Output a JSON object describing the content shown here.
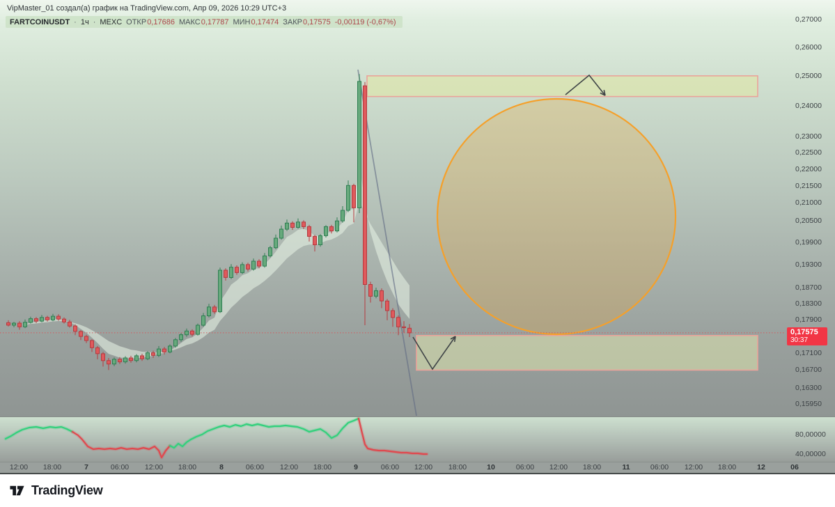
{
  "attribution": "VipMaster_01 создал(а) график на TradingView.com, Апр 09, 2026 10:29 UTC+3",
  "legend": {
    "symbol": "FARTCOINUSDT",
    "separator": "·",
    "interval": "1ч",
    "exchange": "MEXC",
    "fields": [
      {
        "label": "ОТКР",
        "value": "0,17686"
      },
      {
        "label": "МАКС",
        "value": "0,17787"
      },
      {
        "label": "МИН",
        "value": "0,17474"
      },
      {
        "label": "ЗАКР",
        "value": "0,17575"
      }
    ],
    "change": "-0,00119 (-0,67%)"
  },
  "price_label": {
    "price": "0,17575",
    "countdown": "30:37"
  },
  "price_axis_labels": [
    "0,27000",
    "0,26000",
    "0,25000",
    "0,24000",
    "0,23000",
    "0,22500",
    "0,22000",
    "0,21500",
    "0,21000",
    "0,20500",
    "0,19900",
    "0,19300",
    "0,18700",
    "0,18300",
    "0,17900",
    "0,17100",
    "0,16700",
    "0,16300",
    "0,15950"
  ],
  "indicator_axis_labels": [
    {
      "text": "80,00000",
      "value": 80
    },
    {
      "text": "40,00000",
      "value": 40
    }
  ],
  "time_axis_labels": [
    "12:00",
    "18:00",
    "7",
    "06:00",
    "12:00",
    "18:00",
    "8",
    "06:00",
    "12:00",
    "18:00",
    "9",
    "06:00",
    "12:00",
    "18:00",
    "10",
    "06:00",
    "12:00",
    "18:00",
    "11",
    "06:00",
    "12:00",
    "18:00",
    "12",
    "06"
  ],
  "footer": {
    "brand": "TradingView"
  },
  "colors": {
    "up_fill": "#67a97c",
    "up_border": "#2e7e52",
    "down_fill": "#df5a5c",
    "down_border": "#b63a3f",
    "accent_red": "#f23645",
    "zone_fill": "#dde4ad",
    "zone_border": "#eba29a",
    "ellipse_stroke": "#f5a02a",
    "osc_green": "#32d07c",
    "osc_red": "#e0484e",
    "trend_line": "rgba(96,106,131,0.6)",
    "ribbon": "rgba(229,241,227,0.58)"
  },
  "chart_data": {
    "type": "candlestick",
    "symbol": "FARTCOINUSDT",
    "exchange": "MEXC",
    "interval": "1h",
    "price_scale_type": "log",
    "visible_time_range": "Апр 6 ~10:00 — Апр 9 10:00 (2026), axis continues to Апр 12 06:00",
    "ohlc_note": "values estimated from pixels; columns [open, high, low, close]",
    "candles": [
      [
        0.1782,
        0.1788,
        0.1773,
        0.1776
      ],
      [
        0.1776,
        0.1784,
        0.1771,
        0.1781
      ],
      [
        0.1781,
        0.1786,
        0.1765,
        0.1772
      ],
      [
        0.1772,
        0.179,
        0.1769,
        0.1783
      ],
      [
        0.1783,
        0.1797,
        0.178,
        0.1792
      ],
      [
        0.1792,
        0.1796,
        0.1781,
        0.1786
      ],
      [
        0.1786,
        0.1801,
        0.1783,
        0.1795
      ],
      [
        0.1795,
        0.1799,
        0.1785,
        0.1789
      ],
      [
        0.1789,
        0.1804,
        0.1786,
        0.1798
      ],
      [
        0.1798,
        0.1803,
        0.1787,
        0.1791
      ],
      [
        0.1791,
        0.1795,
        0.178,
        0.1784
      ],
      [
        0.1784,
        0.1789,
        0.177,
        0.1774
      ],
      [
        0.1774,
        0.1778,
        0.1752,
        0.1761
      ],
      [
        0.1761,
        0.1764,
        0.174,
        0.1749
      ],
      [
        0.1749,
        0.1753,
        0.1733,
        0.1739
      ],
      [
        0.1739,
        0.1742,
        0.1712,
        0.1722
      ],
      [
        0.1722,
        0.1726,
        0.1695,
        0.1708
      ],
      [
        0.1708,
        0.1712,
        0.1678,
        0.1692
      ],
      [
        0.1692,
        0.1698,
        0.167,
        0.1684
      ],
      [
        0.1684,
        0.1699,
        0.1679,
        0.1695
      ],
      [
        0.1695,
        0.17,
        0.1684,
        0.1689
      ],
      [
        0.1689,
        0.1702,
        0.1685,
        0.1698
      ],
      [
        0.1698,
        0.1703,
        0.1687,
        0.1692
      ],
      [
        0.1692,
        0.1707,
        0.1688,
        0.1703
      ],
      [
        0.1703,
        0.1708,
        0.1691,
        0.1696
      ],
      [
        0.1696,
        0.1714,
        0.1693,
        0.171
      ],
      [
        0.171,
        0.1715,
        0.1698,
        0.1704
      ],
      [
        0.1704,
        0.1726,
        0.17,
        0.1719
      ],
      [
        0.1719,
        0.1724,
        0.1706,
        0.1712
      ],
      [
        0.1712,
        0.173,
        0.1709,
        0.1726
      ],
      [
        0.1726,
        0.1745,
        0.1722,
        0.1741
      ],
      [
        0.1741,
        0.1757,
        0.1736,
        0.1753
      ],
      [
        0.1753,
        0.1768,
        0.1748,
        0.1762
      ],
      [
        0.1762,
        0.1766,
        0.1749,
        0.1754
      ],
      [
        0.1754,
        0.178,
        0.1751,
        0.1776
      ],
      [
        0.1776,
        0.1806,
        0.1772,
        0.1799
      ],
      [
        0.1799,
        0.1829,
        0.1795,
        0.1821
      ],
      [
        0.1821,
        0.1826,
        0.1804,
        0.1809
      ],
      [
        0.1809,
        0.1922,
        0.1806,
        0.1915
      ],
      [
        0.1915,
        0.192,
        0.1888,
        0.1896
      ],
      [
        0.1896,
        0.1931,
        0.1892,
        0.1923
      ],
      [
        0.1923,
        0.1928,
        0.1903,
        0.1909
      ],
      [
        0.1909,
        0.1936,
        0.1905,
        0.193
      ],
      [
        0.193,
        0.1935,
        0.1912,
        0.1918
      ],
      [
        0.1918,
        0.1946,
        0.1914,
        0.1939
      ],
      [
        0.1939,
        0.1944,
        0.192,
        0.1926
      ],
      [
        0.1926,
        0.1961,
        0.1922,
        0.1953
      ],
      [
        0.1953,
        0.198,
        0.1949,
        0.1975
      ],
      [
        0.1975,
        0.2011,
        0.1971,
        0.2001
      ],
      [
        0.2001,
        0.2036,
        0.1997,
        0.2026
      ],
      [
        0.2026,
        0.2053,
        0.2021,
        0.2043
      ],
      [
        0.2043,
        0.2048,
        0.2024,
        0.2031
      ],
      [
        0.2031,
        0.2056,
        0.2027,
        0.2046
      ],
      [
        0.2046,
        0.2051,
        0.2026,
        0.2033
      ],
      [
        0.2033,
        0.2038,
        0.1992,
        0.2006
      ],
      [
        0.2006,
        0.201,
        0.1965,
        0.1983
      ],
      [
        0.1983,
        0.2012,
        0.1978,
        0.2008
      ],
      [
        0.2008,
        0.2037,
        0.2003,
        0.2033
      ],
      [
        0.2033,
        0.2038,
        0.2014,
        0.2021
      ],
      [
        0.2021,
        0.2059,
        0.2017,
        0.2049
      ],
      [
        0.2049,
        0.2091,
        0.2044,
        0.2079
      ],
      [
        0.2079,
        0.2166,
        0.2074,
        0.2151
      ],
      [
        0.2151,
        0.2156,
        0.2045,
        0.2086
      ],
      [
        0.2086,
        0.2506,
        0.2071,
        0.2481
      ],
      [
        0.2466,
        0.2479,
        0.1776,
        0.1878
      ],
      [
        0.1878,
        0.1885,
        0.1832,
        0.1848
      ],
      [
        0.1848,
        0.187,
        0.1843,
        0.1862
      ],
      [
        0.1862,
        0.1868,
        0.1818,
        0.1836
      ],
      [
        0.1836,
        0.1841,
        0.1788,
        0.1812
      ],
      [
        0.1812,
        0.1818,
        0.1772,
        0.1795
      ],
      [
        0.1795,
        0.18,
        0.1752,
        0.1772
      ],
      [
        0.1772,
        0.1786,
        0.1758,
        0.177
      ],
      [
        0.17686,
        0.17787,
        0.17474,
        0.17575
      ]
    ],
    "current_candle": {
      "open": 0.17686,
      "high": 0.17787,
      "low": 0.17474,
      "close": 0.17575,
      "change": -0.00119,
      "change_pct": -0.67,
      "countdown": "30:37"
    },
    "annotations": {
      "supply_zone": {
        "price_from": 0.243,
        "price_to": 0.25
      },
      "demand_zone": {
        "price_from": 0.167,
        "price_to": 0.1751
      },
      "highlight_ellipse": {
        "price_center": 0.206,
        "price_top": 0.247,
        "price_bottom": 0.172
      },
      "trend_line": {
        "from_price": 0.25,
        "to_price": 0.162,
        "shape": "steep descending line from blow-off top"
      },
      "zigzag_arrows": [
        "pullback-into-supply-then-down",
        "dip-into-demand-then-up"
      ]
    },
    "indicator": {
      "pane_scale": [
        40,
        80
      ],
      "points": [
        [
          8,
          71.4
        ],
        [
          16,
          77.1
        ],
        [
          24,
          84.3
        ],
        [
          32,
          90
        ],
        [
          42,
          94.3
        ],
        [
          52,
          95.7
        ],
        [
          62,
          92.9
        ],
        [
          72,
          95.7
        ],
        [
          80,
          94.3
        ],
        [
          88,
          95.7
        ],
        [
          96,
          91.4
        ],
        [
          104,
          85.7
        ],
        [
          112,
          78.6
        ],
        [
          118,
          70
        ],
        [
          126,
          55.7
        ],
        [
          134,
          50
        ],
        [
          142,
          51.4
        ],
        [
          150,
          50
        ],
        [
          158,
          51.4
        ],
        [
          166,
          50
        ],
        [
          174,
          52.9
        ],
        [
          182,
          50
        ],
        [
          190,
          51.4
        ],
        [
          198,
          50
        ],
        [
          206,
          52.9
        ],
        [
          214,
          50
        ],
        [
          222,
          55.7
        ],
        [
          228,
          47.1
        ],
        [
          232,
          32.9
        ],
        [
          238,
          47.1
        ],
        [
          244,
          57.1
        ],
        [
          250,
          52.9
        ],
        [
          256,
          61.4
        ],
        [
          262,
          55.7
        ],
        [
          268,
          64.3
        ],
        [
          274,
          70
        ],
        [
          282,
          75.7
        ],
        [
          290,
          80
        ],
        [
          298,
          87.1
        ],
        [
          306,
          91.4
        ],
        [
          314,
          95.7
        ],
        [
          322,
          98.6
        ],
        [
          330,
          95.7
        ],
        [
          338,
          100
        ],
        [
          346,
          97.1
        ],
        [
          354,
          101.4
        ],
        [
          362,
          98.6
        ],
        [
          370,
          101.4
        ],
        [
          378,
          98.6
        ],
        [
          386,
          95.7
        ],
        [
          394,
          97.1
        ],
        [
          402,
          97.1
        ],
        [
          410,
          98.6
        ],
        [
          418,
          97.1
        ],
        [
          427,
          95.7
        ],
        [
          436,
          91.4
        ],
        [
          444,
          85.7
        ],
        [
          452,
          88.6
        ],
        [
          460,
          91.4
        ],
        [
          468,
          84.3
        ],
        [
          476,
          72.9
        ],
        [
          484,
          78.6
        ],
        [
          492,
          92.9
        ],
        [
          500,
          104.3
        ],
        [
          508,
          108.6
        ],
        [
          515,
          112.9
        ],
        [
          520,
          82.9
        ],
        [
          524,
          60
        ],
        [
          528,
          51.4
        ],
        [
          536,
          48.6
        ],
        [
          544,
          47.1
        ],
        [
          552,
          47.1
        ],
        [
          560,
          45.7
        ],
        [
          568,
          44.3
        ],
        [
          576,
          42.9
        ],
        [
          584,
          42.9
        ],
        [
          592,
          41.4
        ],
        [
          600,
          41.4
        ],
        [
          608,
          40
        ],
        [
          613,
          40
        ]
      ],
      "red_ranges": [
        [
          112,
          244
        ],
        [
          517,
          613
        ]
      ]
    }
  }
}
